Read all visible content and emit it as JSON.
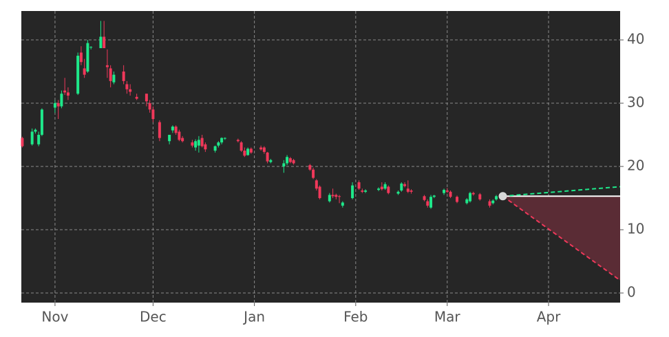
{
  "chart_data": {
    "type": "candlestick",
    "xlim": [
      -10.3,
      172.9
    ],
    "ylim": [
      -1.52,
      44.57
    ],
    "xticks": [
      {
        "value": 0,
        "label": "Nov"
      },
      {
        "value": 30,
        "label": "Dec"
      },
      {
        "value": 61,
        "label": "Jan"
      },
      {
        "value": 92,
        "label": "Feb"
      },
      {
        "value": 120,
        "label": "Mar"
      },
      {
        "value": 151,
        "label": "Apr"
      }
    ],
    "yticks": [
      0,
      10,
      20,
      30,
      40
    ],
    "grid": true,
    "up_color": "#1ee88a",
    "down_color": "#f0385a",
    "x": [
      -10,
      -7,
      -6,
      -5,
      -4,
      0,
      1,
      2,
      3,
      4,
      7,
      8,
      9,
      10,
      11,
      14,
      15,
      16,
      17,
      18,
      21,
      22,
      23,
      25,
      28,
      29,
      30,
      32,
      35,
      36,
      37,
      38,
      39,
      42,
      43,
      44,
      45,
      46,
      49,
      50,
      51,
      52,
      56,
      57,
      58,
      59,
      60,
      63,
      64,
      65,
      66,
      70,
      71,
      72,
      73,
      78,
      79,
      80,
      81,
      84,
      85,
      86,
      87,
      88,
      91,
      93,
      94,
      95,
      99,
      100,
      101,
      102,
      105,
      106,
      107,
      108,
      109,
      113,
      114,
      115,
      116,
      119,
      120,
      121,
      123,
      126,
      127,
      128,
      130,
      133,
      134,
      135
    ],
    "open": [
      24.5,
      23.5,
      25.5,
      23.5,
      25,
      29.3,
      30,
      29.5,
      32,
      31.7,
      31.5,
      38,
      35.5,
      35,
      38.8,
      38.7,
      40.5,
      36,
      35.5,
      33.3,
      35,
      33,
      32.2,
      31,
      31.5,
      30,
      29,
      27,
      24,
      25.7,
      26.3,
      25.5,
      24.5,
      23.8,
      23,
      23.3,
      24.5,
      23.5,
      22.5,
      23.3,
      23.8,
      24.4,
      24.2,
      23.8,
      22.5,
      21.8,
      22.8,
      23,
      23,
      22.2,
      20.7,
      20,
      20.5,
      21.3,
      21,
      20.2,
      19.5,
      17.8,
      16.8,
      14.5,
      15.5,
      15.5,
      15.3,
      13.8,
      15,
      17.5,
      16.2,
      16,
      16.3,
      16.8,
      16.5,
      16.8,
      15.7,
      16.2,
      17.2,
      16.5,
      16.2,
      15.3,
      14.5,
      13.5,
      15.2,
      15.8,
      16.2,
      16,
      15.2,
      14.2,
      14.5,
      15.8,
      15.6,
      14.5,
      14.2,
      14.8
    ],
    "high": [
      24.7,
      26,
      26,
      25.5,
      29.2,
      30.5,
      30.5,
      32,
      34,
      32.5,
      38,
      39,
      37,
      40,
      39,
      43,
      43,
      38.5,
      36,
      35,
      36,
      33.5,
      33,
      31.5,
      31.5,
      30.5,
      29.5,
      27.3,
      25,
      26.5,
      26.5,
      25.8,
      24.8,
      24.2,
      24.3,
      24.8,
      25,
      23.8,
      23.3,
      24,
      24.6,
      24.6,
      24.4,
      24,
      23,
      23,
      23,
      23.3,
      23.2,
      22.3,
      21.2,
      21,
      21.8,
      21.5,
      21.2,
      20.4,
      19.8,
      18,
      17,
      15.8,
      16.5,
      15.7,
      15.5,
      14.5,
      17.5,
      17.8,
      16.5,
      16.4,
      16.7,
      17.5,
      17.5,
      17,
      16.2,
      17.5,
      17.5,
      17.8,
      16.4,
      15.5,
      14.8,
      15.5,
      15.5,
      16.5,
      16.6,
      16.2,
      15.4,
      15,
      16,
      16,
      15.8,
      14.8,
      14.8,
      15.5
    ],
    "low": [
      23,
      23.3,
      25.2,
      23.2,
      24.8,
      28.5,
      27.5,
      29.2,
      31.3,
      30.5,
      31.3,
      36,
      34,
      34.8,
      38.5,
      38.7,
      38.7,
      34,
      32.5,
      33,
      33,
      31.5,
      31.2,
      30.5,
      29.5,
      28.5,
      27,
      24,
      23.5,
      25.3,
      25,
      24,
      23.8,
      23,
      22.5,
      22.2,
      23,
      22.3,
      22.2,
      23,
      23.5,
      24.2,
      23.8,
      22.3,
      21.5,
      21.7,
      22,
      22.5,
      22,
      20.5,
      20.5,
      19,
      20.2,
      20.5,
      20.3,
      19.3,
      18,
      16.2,
      14.8,
      14.3,
      15,
      14.8,
      14.2,
      13.5,
      14.8,
      16.3,
      15.8,
      15.8,
      16.1,
      16.2,
      16.3,
      15.6,
      15.5,
      16,
      16.7,
      15.8,
      15.7,
      14.5,
      13.5,
      13.3,
      15,
      15.5,
      15.8,
      15,
      14.2,
      14,
      14.3,
      15.4,
      14.6,
      13.5,
      14,
      14.6
    ],
    "close": [
      23.2,
      25.5,
      25.8,
      25,
      29,
      30,
      29.5,
      31.5,
      31.7,
      31.2,
      37.5,
      36.5,
      34.5,
      39.5,
      38.9,
      40.5,
      38.7,
      35.7,
      33.5,
      34.5,
      33.5,
      32.2,
      31.8,
      30.7,
      30.3,
      29,
      27.5,
      24.5,
      25,
      26.3,
      25.3,
      24.2,
      24,
      23.3,
      24,
      24.2,
      23.2,
      22.7,
      23.2,
      23.8,
      24.5,
      24.5,
      24,
      22.5,
      21.7,
      22.8,
      22.2,
      22.7,
      22.3,
      20.8,
      21,
      20.5,
      21.5,
      20.7,
      20.5,
      19.5,
      18.2,
      16.5,
      15,
      15.5,
      15.3,
      15.2,
      15.2,
      14.3,
      17,
      16.5,
      16,
      16.2,
      16.5,
      16.4,
      17.2,
      15.8,
      16,
      17.3,
      16.9,
      16,
      16,
      14.7,
      13.8,
      15.2,
      15.4,
      16.3,
      16,
      15.2,
      14.4,
      14.8,
      15.8,
      15.6,
      14.8,
      13.8,
      14.6,
      15.3
    ],
    "forecast": {
      "x": [
        137,
        172.9
      ],
      "mid": [
        15.3,
        15.3
      ],
      "upper": [
        15.3,
        16.8
      ],
      "lower": [
        15.3,
        2
      ],
      "upper_color": "#1ee88a",
      "lower_color": "#f0385a",
      "mid_color": "#ffffff",
      "fill_color": "#5a2c35",
      "point_color": "#d8d8d8"
    }
  }
}
